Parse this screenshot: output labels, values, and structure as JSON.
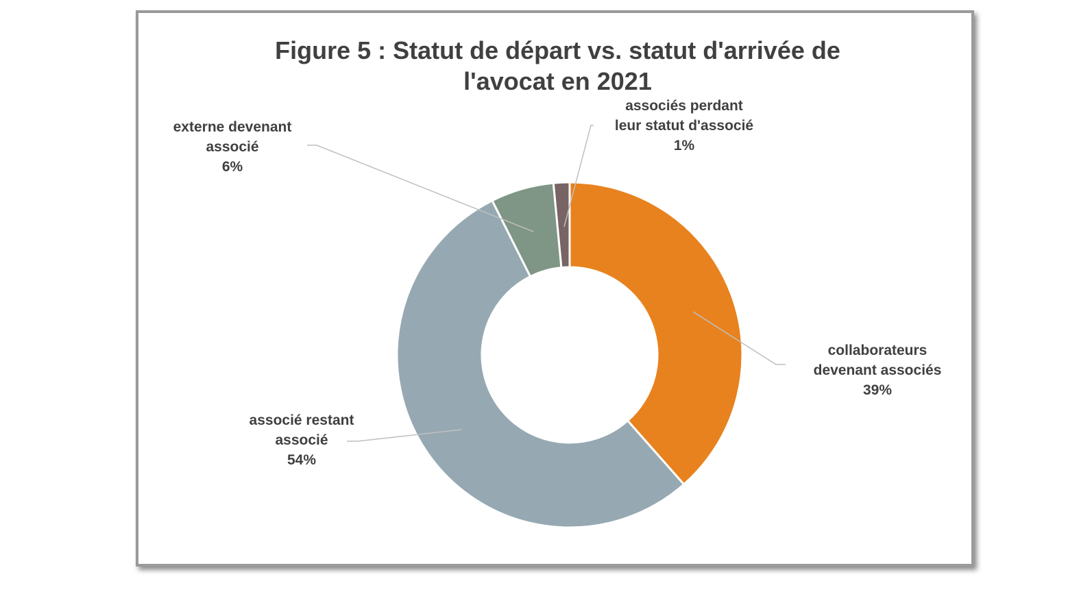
{
  "chart_data": {
    "type": "pie",
    "variant": "donut",
    "title_lines": [
      "Figure 5 : Statut de départ vs. statut d'arrivée de",
      "l'avocat en 2021"
    ],
    "start_angle_deg": 0,
    "direction": "clockwise",
    "slices": [
      {
        "label_lines": [
          "collaborateurs",
          "devenant associés"
        ],
        "percent_label": "39%",
        "value": 38.5,
        "color": "#e8821e"
      },
      {
        "label_lines": [
          "associé restant",
          "associé"
        ],
        "percent_label": "54%",
        "value": 54.1,
        "color": "#96a9b2"
      },
      {
        "label_lines": [
          "externe devenant",
          "associé"
        ],
        "percent_label": "6%",
        "value": 5.9,
        "color": "#7f9585"
      },
      {
        "label_lines": [
          "associés perdant",
          "leur statut d'associé"
        ],
        "percent_label": "1%",
        "value": 1.5,
        "color": "#786464"
      }
    ],
    "legend": "none",
    "leader_line_color": "#bfbfbf"
  }
}
